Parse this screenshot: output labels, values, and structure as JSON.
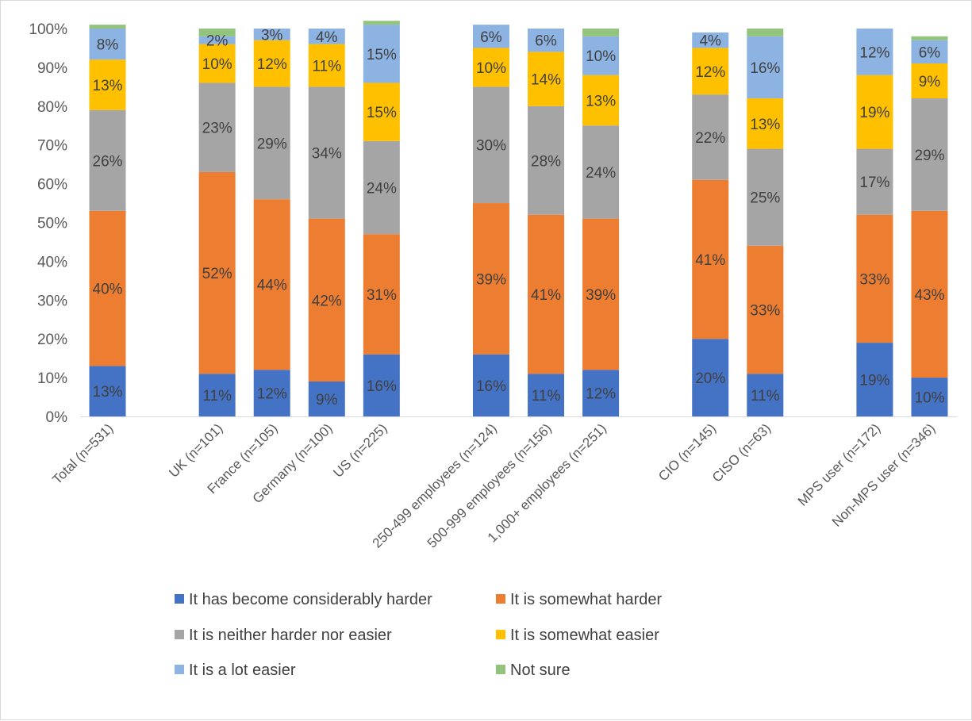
{
  "chart_data": {
    "type": "bar",
    "stacked": true,
    "normalized": true,
    "categories": [
      "Total (n=531)",
      "UK (n=101)",
      "France (n=105)",
      "Germany (n=100)",
      "US (n=225)",
      "250-499 employees (n=124)",
      "500-999 employees (n=156)",
      "1,000+ employees (n=251)",
      "CIO (n=145)",
      "CISO (n=63)",
      "MPS user (n=172)",
      "Non-MPS user (n=346)"
    ],
    "groups": [
      [
        0
      ],
      [
        1,
        2,
        3,
        4
      ],
      [
        5,
        6,
        7
      ],
      [
        8,
        9
      ],
      [
        10,
        11
      ]
    ],
    "series": [
      {
        "name": "It has become considerably harder",
        "color": "#4472c4",
        "values": [
          13,
          11,
          12,
          9,
          16,
          16,
          11,
          12,
          20,
          11,
          19,
          10
        ],
        "labels": [
          "13%",
          "11%",
          "12%",
          "9%",
          "16%",
          "16%",
          "11%",
          "12%",
          "20%",
          "11%",
          "19%",
          "10%"
        ]
      },
      {
        "name": "It is somewhat harder",
        "color": "#ed7d31",
        "values": [
          40,
          52,
          44,
          42,
          31,
          39,
          41,
          39,
          41,
          33,
          33,
          43
        ],
        "labels": [
          "40%",
          "52%",
          "44%",
          "42%",
          "31%",
          "39%",
          "41%",
          "39%",
          "41%",
          "33%",
          "33%",
          "43%"
        ]
      },
      {
        "name": "It is neither harder nor easier",
        "color": "#a5a5a5",
        "values": [
          26,
          23,
          29,
          34,
          24,
          30,
          28,
          24,
          22,
          25,
          17,
          29
        ],
        "labels": [
          "26%",
          "23%",
          "29%",
          "34%",
          "24%",
          "30%",
          "28%",
          "24%",
          "22%",
          "25%",
          "17%",
          "29%"
        ]
      },
      {
        "name": "It is somewhat easier",
        "color": "#ffc000",
        "values": [
          13,
          10,
          12,
          11,
          15,
          10,
          14,
          13,
          12,
          13,
          19,
          9
        ],
        "labels": [
          "13%",
          "10%",
          "12%",
          "11%",
          "15%",
          "10%",
          "14%",
          "13%",
          "12%",
          "13%",
          "19%",
          "9%"
        ]
      },
      {
        "name": "It is a lot easier",
        "color": "#8db3e2",
        "values": [
          8,
          2,
          3,
          4,
          15,
          6,
          6,
          10,
          4,
          16,
          12,
          6
        ],
        "labels": [
          "8%",
          "2%",
          "3%",
          "4%",
          "15%",
          "6%",
          "6%",
          "10%",
          "4%",
          "16%",
          "12%",
          "6%"
        ]
      },
      {
        "name": "Not sure",
        "color": "#93c47d",
        "values": [
          1,
          2,
          0,
          0,
          1,
          0,
          0,
          2,
          0,
          2,
          0,
          1
        ],
        "labels": [
          "",
          "",
          "",
          "",
          "",
          "",
          "",
          "",
          "",
          "",
          "",
          ""
        ]
      }
    ],
    "ylim": [
      0,
      100
    ],
    "yticks": [
      "0%",
      "10%",
      "20%",
      "30%",
      "40%",
      "50%",
      "60%",
      "70%",
      "80%",
      "90%",
      "100%"
    ],
    "grid": false,
    "legend_position": "bottom",
    "title": "",
    "xlabel": "",
    "ylabel": ""
  }
}
